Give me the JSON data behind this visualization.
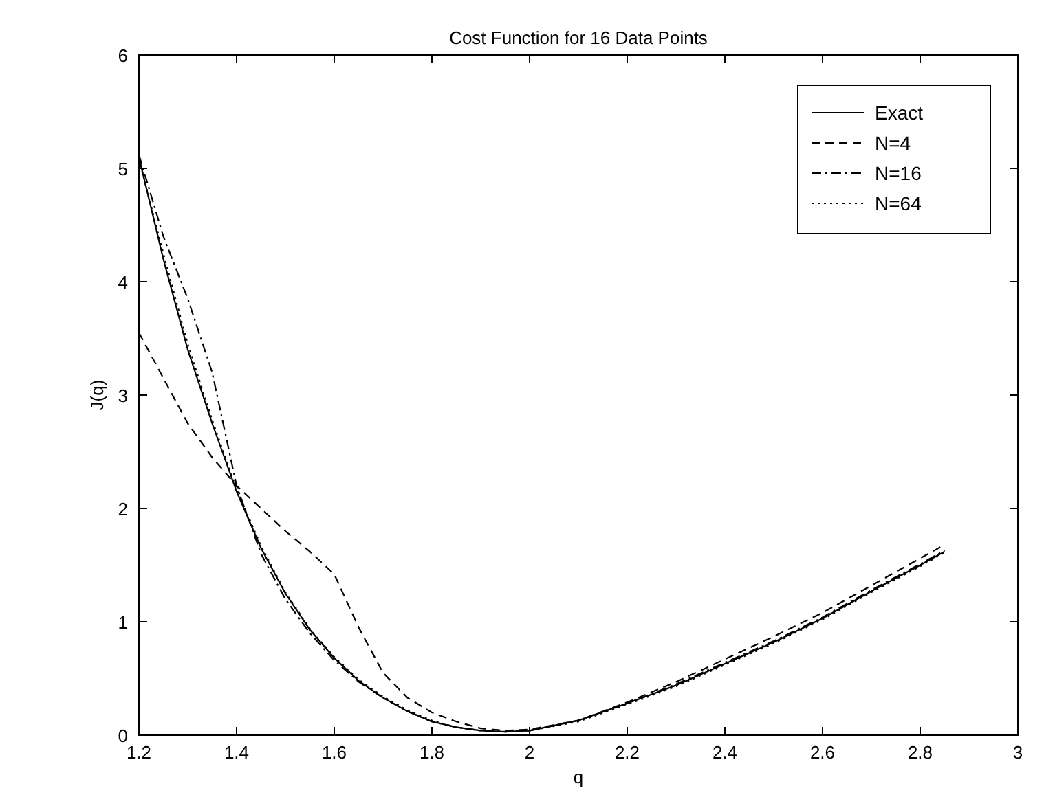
{
  "chart_data": {
    "type": "line",
    "title": "Cost Function for 16 Data Points",
    "xlabel": "q",
    "ylabel": "J(q)",
    "xlim": [
      1.2,
      3
    ],
    "ylim": [
      0,
      6
    ],
    "xticks": [
      1.2,
      1.4,
      1.6,
      1.8,
      2,
      2.2,
      2.4,
      2.6,
      2.8,
      3
    ],
    "yticks": [
      0,
      1,
      2,
      3,
      4,
      5,
      6
    ],
    "grid": false,
    "legend": "top right",
    "series": [
      {
        "name": "Exact",
        "color": "#000000",
        "line_style": "solid",
        "x": [
          1.2,
          1.25,
          1.3,
          1.35,
          1.4,
          1.45,
          1.5,
          1.55,
          1.6,
          1.65,
          1.7,
          1.75,
          1.8,
          1.85,
          1.9,
          1.95,
          2,
          2.1,
          2.2,
          2.3,
          2.4,
          2.5,
          2.6,
          2.7,
          2.8,
          2.85
        ],
        "values": [
          5.1,
          4.2,
          3.4,
          2.75,
          2.15,
          1.65,
          1.25,
          0.93,
          0.68,
          0.48,
          0.33,
          0.21,
          0.12,
          0.07,
          0.04,
          0.03,
          0.04,
          0.13,
          0.28,
          0.44,
          0.63,
          0.82,
          1.03,
          1.27,
          1.5,
          1.62
        ]
      },
      {
        "name": "N=4",
        "color": "#000000",
        "line_style": "dashed",
        "x": [
          1.2,
          1.25,
          1.3,
          1.35,
          1.4,
          1.45,
          1.5,
          1.55,
          1.6,
          1.65,
          1.7,
          1.75,
          1.8,
          1.85,
          1.9,
          1.95,
          2,
          2.1,
          2.2,
          2.3,
          2.4,
          2.5,
          2.6,
          2.7,
          2.8,
          2.85
        ],
        "values": [
          3.55,
          3.15,
          2.75,
          2.45,
          2.2,
          2.0,
          1.8,
          1.62,
          1.42,
          0.95,
          0.55,
          0.33,
          0.2,
          0.12,
          0.06,
          0.04,
          0.05,
          0.13,
          0.29,
          0.47,
          0.67,
          0.87,
          1.08,
          1.32,
          1.56,
          1.68
        ]
      },
      {
        "name": "N=16",
        "color": "#000000",
        "line_style": "dashdot",
        "x": [
          1.2,
          1.25,
          1.3,
          1.35,
          1.4,
          1.45,
          1.5,
          1.55,
          1.6,
          1.65,
          1.7,
          1.75,
          1.8,
          1.85,
          1.9,
          1.95,
          2,
          2.1,
          2.2,
          2.3,
          2.4,
          2.5,
          2.6,
          2.7,
          2.8,
          2.85
        ],
        "values": [
          5.12,
          4.4,
          3.85,
          3.2,
          2.2,
          1.6,
          1.2,
          0.9,
          0.66,
          0.47,
          0.33,
          0.21,
          0.12,
          0.07,
          0.04,
          0.03,
          0.04,
          0.13,
          0.28,
          0.45,
          0.64,
          0.83,
          1.04,
          1.28,
          1.51,
          1.63
        ]
      },
      {
        "name": "N=64",
        "color": "#000000",
        "line_style": "dotted",
        "x": [
          1.2,
          1.25,
          1.3,
          1.35,
          1.4,
          1.45,
          1.5,
          1.55,
          1.6,
          1.65,
          1.7,
          1.75,
          1.8,
          1.85,
          1.9,
          1.95,
          2,
          2.1,
          2.2,
          2.3,
          2.4,
          2.5,
          2.6,
          2.7,
          2.8,
          2.85
        ],
        "values": [
          5.08,
          4.25,
          3.45,
          2.78,
          2.17,
          1.67,
          1.26,
          0.94,
          0.69,
          0.49,
          0.34,
          0.22,
          0.13,
          0.07,
          0.04,
          0.03,
          0.04,
          0.12,
          0.27,
          0.43,
          0.62,
          0.81,
          1.02,
          1.26,
          1.49,
          1.61
        ]
      }
    ]
  }
}
